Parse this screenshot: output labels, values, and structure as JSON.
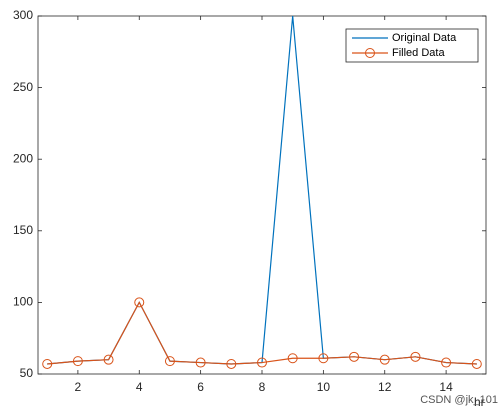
{
  "chart_data": {
    "type": "line",
    "x": [
      1,
      2,
      3,
      4,
      5,
      6,
      7,
      8,
      9,
      10,
      11,
      12,
      13,
      14,
      15
    ],
    "series": [
      {
        "name": "Original Data",
        "color": "#0072bd",
        "marker": "none",
        "values": [
          57,
          59,
          60,
          100,
          59,
          58,
          57,
          58,
          300,
          61,
          62,
          60,
          62,
          58,
          57
        ]
      },
      {
        "name": "Filled Data",
        "color": "#d95319",
        "marker": "circle",
        "values": [
          57,
          59,
          60,
          100,
          59,
          58,
          57,
          58,
          61,
          61,
          62,
          60,
          62,
          58,
          57
        ]
      }
    ],
    "xlabel": "hr",
    "xlim": [
      0.7,
      15.3
    ],
    "xticks": [
      2,
      4,
      6,
      8,
      10,
      12,
      14
    ],
    "ylim": [
      50,
      300
    ],
    "yticks": [
      50,
      100,
      150,
      200,
      250,
      300
    ],
    "legend": "upper right",
    "watermark": "CSDN @jk_101"
  }
}
